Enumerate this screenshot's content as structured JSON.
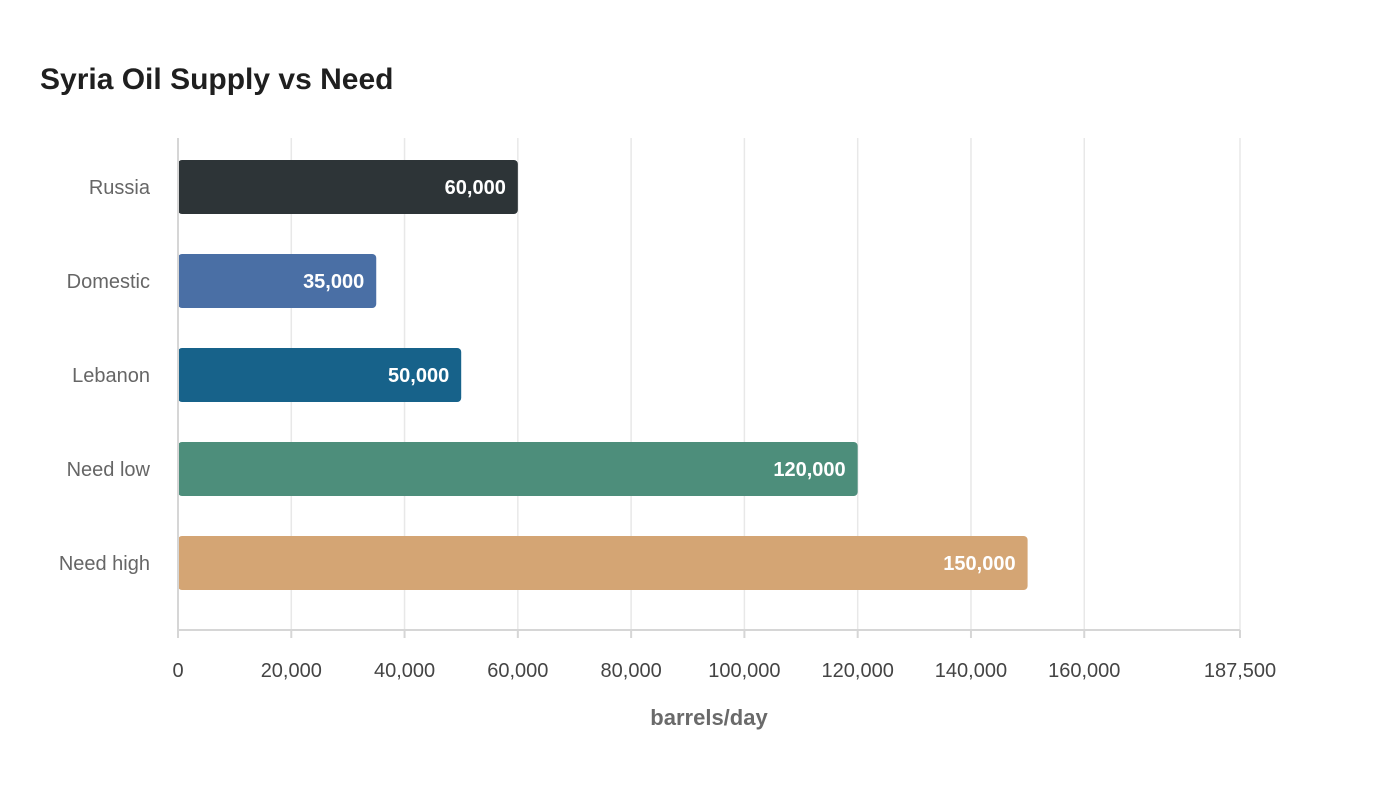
{
  "chart_data": {
    "type": "bar",
    "orientation": "horizontal",
    "title": "Syria Oil Supply vs Need",
    "xlabel": "barrels/day",
    "ylabel": "",
    "categories": [
      "Russia",
      "Domestic",
      "Lebanon",
      "Need low",
      "Need high"
    ],
    "values": [
      60000,
      35000,
      50000,
      120000,
      150000
    ],
    "value_labels": [
      "60,000",
      "35,000",
      "50,000",
      "120,000",
      "150,000"
    ],
    "colors": [
      "#2d3437",
      "#4a6fa5",
      "#17628a",
      "#4d8e7b",
      "#d4a574"
    ],
    "xlim": [
      0,
      187500
    ],
    "xticks": [
      0,
      20000,
      40000,
      60000,
      80000,
      100000,
      120000,
      140000,
      160000,
      187500
    ],
    "xtick_labels": [
      "0",
      "20,000",
      "40,000",
      "60,000",
      "80,000",
      "100,000",
      "120,000",
      "140,000",
      "160,000",
      "187,500"
    ],
    "grid": true,
    "legend": "none"
  }
}
